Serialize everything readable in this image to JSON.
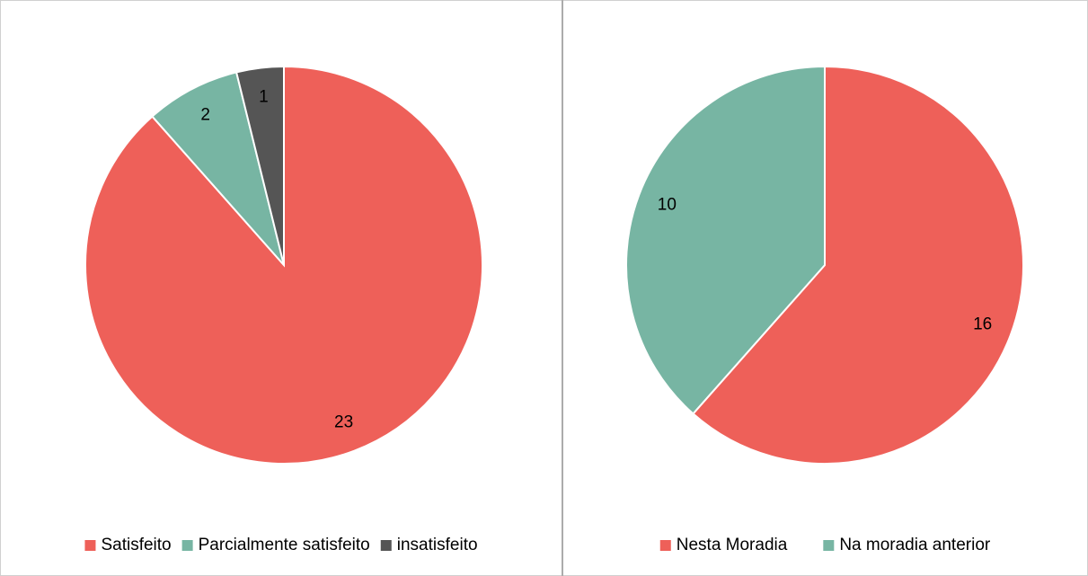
{
  "chart_data": [
    {
      "type": "pie",
      "categories": [
        "Satisfeito",
        "Parcialmente satisfeito",
        "insatisfeito"
      ],
      "values": [
        23,
        2,
        1
      ],
      "colors": [
        "#ee6059",
        "#77b5a3",
        "#555555"
      ],
      "legend": "bottom"
    },
    {
      "type": "pie",
      "categories": [
        "Nesta Moradia",
        "Na moradia anterior"
      ],
      "values": [
        16,
        10
      ],
      "colors": [
        "#ee6059",
        "#77b5a3"
      ],
      "legend": "bottom"
    }
  ]
}
